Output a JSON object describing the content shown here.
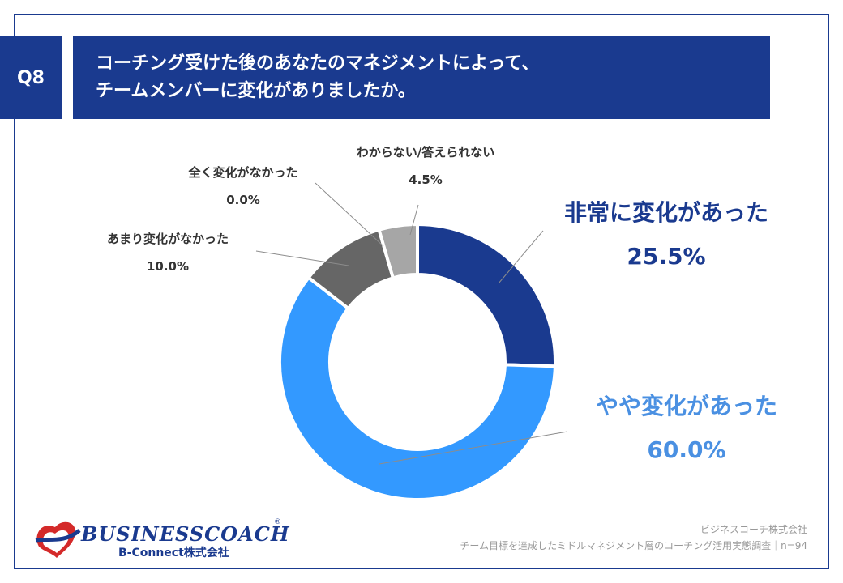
{
  "header": {
    "badge": "Q8",
    "title_line1": "コーチング受けた後のあなたのマネジメントによって、",
    "title_line2": "チームメンバーに変化がありましたか。"
  },
  "chart_data": {
    "type": "pie",
    "donut": true,
    "categories": [
      "非常に変化があった",
      "やや変化があった",
      "全く変化がなかった",
      "あまり変化がなかった",
      "わからない/答えられない"
    ],
    "values": [
      25.5,
      60.0,
      0.0,
      10.0,
      4.5
    ],
    "labels": [
      "25.5%",
      "60.0%",
      "0.0%",
      "10.0%",
      "4.5%"
    ],
    "colors": [
      "#1a3a8f",
      "#3399ff",
      "#777777",
      "#666666",
      "#a6a6a6"
    ]
  },
  "brand": {
    "name": "BUSINESSCOACH",
    "sub": "B-Connect株式会社"
  },
  "footer": {
    "company": "ビジネスコーチ株式会社",
    "survey": "チーム目標を達成したミドルマネジメント層のコーチング活用実態調査｜n=94"
  }
}
